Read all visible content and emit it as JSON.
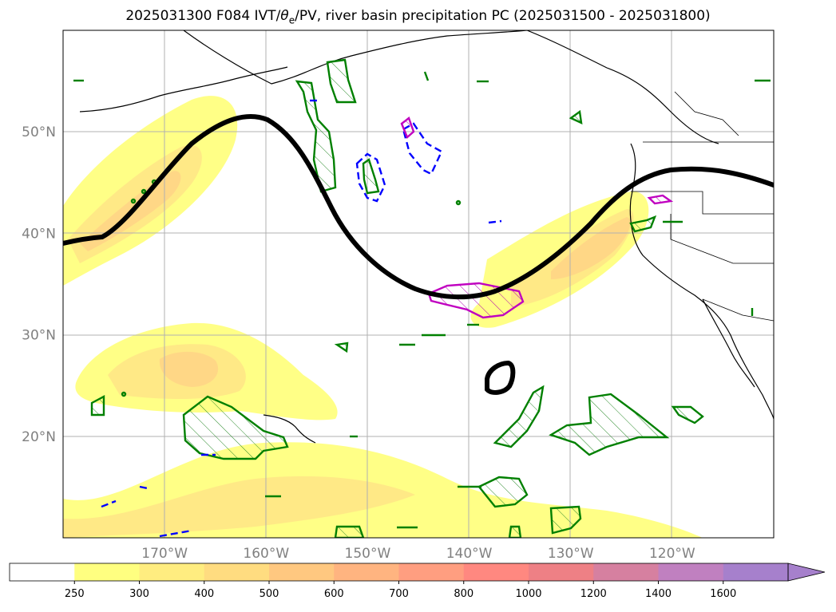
{
  "figure": {
    "title_prefix": "2025031300 F084 IVT/",
    "title_theta": "θ",
    "title_sub": "e",
    "title_suffix": "/PV, river basin precipitation PC (2025031500 - 2025031800)"
  },
  "map": {
    "extent": {
      "lon_min": -180,
      "lon_max": -110,
      "lat_min": 10,
      "lat_max": 60
    },
    "gridlines": true,
    "lat_ticks": [
      {
        "value": 20,
        "label": "20°N"
      },
      {
        "value": 30,
        "label": "30°N"
      },
      {
        "value": 40,
        "label": "40°N"
      },
      {
        "value": 50,
        "label": "50°N"
      }
    ],
    "lon_ticks": [
      {
        "value": -170,
        "label": "170°W"
      },
      {
        "value": -160,
        "label": "160°W"
      },
      {
        "value": -150,
        "label": "150°W"
      },
      {
        "value": -140,
        "label": "140°W"
      },
      {
        "value": -130,
        "label": "130°W"
      },
      {
        "value": -120,
        "label": "120°W"
      }
    ]
  },
  "ivt_colorbar": {
    "levels": [
      250,
      300,
      400,
      500,
      600,
      700,
      800,
      1000,
      1200,
      1400,
      1600
    ],
    "labels": [
      "250",
      "300",
      "400",
      "500",
      "600",
      "700",
      "800",
      "1000",
      "1200",
      "1400",
      "1600"
    ],
    "colors": [
      "#ffffff",
      "#ffff80",
      "#ffed80",
      "#ffdc80",
      "#ffc880",
      "#ffb480",
      "#ff9e80",
      "#ff8880",
      "#ee8085",
      "#d680a0",
      "#c080c0",
      "#a680cc"
    ],
    "extend": "max"
  },
  "colors": {
    "pv_contour": "#000000",
    "theta_positive": "#008000",
    "theta_negative": "#0000ff",
    "precip_pc": "#c000c0",
    "coast": "#000000",
    "grid": "#b0b0b0"
  }
}
